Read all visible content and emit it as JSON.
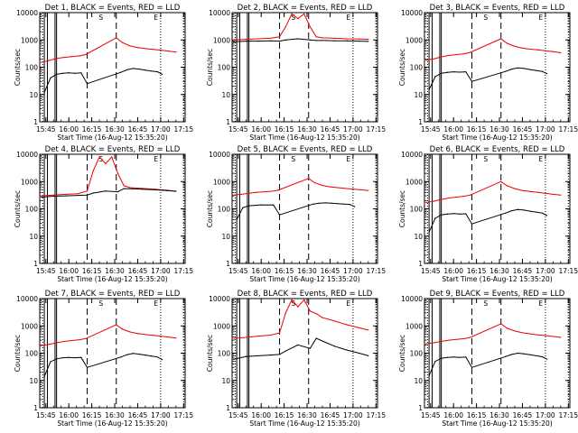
{
  "colors": {
    "events": "#000000",
    "lld": "#ee0000",
    "background": "#ffffff"
  },
  "chart_data": [
    {
      "type": "line",
      "title": "Det 1, BLACK = Events, RED = LLD",
      "xlabel": "Start Time (16-Aug-12 15:35:20)",
      "ylabel": "Counts/sec",
      "x_ticklabels": [
        "15:45",
        "16:00",
        "16:15",
        "16:30",
        "16:45",
        "17:00",
        "17:15"
      ],
      "y_ticklabels": [
        "1",
        "10",
        "100",
        "1000",
        "10000"
      ],
      "ylim": [
        1,
        10000
      ],
      "yscale": "log",
      "annotations": [
        "S",
        "E"
      ],
      "series": [
        {
          "name": "LLD",
          "x": [
            "15:42",
            "15:47",
            "15:52",
            "15:57",
            "16:02",
            "16:07",
            "16:11",
            "16:31",
            "16:35",
            "16:40",
            "16:45",
            "16:50",
            "16:55",
            "17:00",
            "17:05",
            "17:10"
          ],
          "y": [
            150,
            175,
            210,
            230,
            245,
            260,
            290,
            1200,
            800,
            600,
            520,
            480,
            450,
            420,
            390,
            360
          ]
        },
        {
          "name": "Events",
          "x": [
            "15:44",
            "15:48",
            "15:52",
            "15:56",
            "16:00",
            "16:04",
            "16:08",
            "16:12",
            "16:34",
            "16:38",
            "16:42",
            "16:46",
            "16:50",
            "16:54",
            "16:58",
            "17:01"
          ],
          "y": [
            12,
            40,
            55,
            60,
            62,
            60,
            62,
            25,
            65,
            80,
            90,
            85,
            78,
            72,
            68,
            55
          ]
        }
      ]
    },
    {
      "type": "line",
      "title": "Det 2, BLACK = Events, RED = LLD",
      "xlabel": "Start Time (16-Aug-12 15:35:20)",
      "ylabel": "Counts/sec",
      "x_ticklabels": [
        "15:45",
        "16:00",
        "16:15",
        "16:30",
        "16:45",
        "17:00",
        "17:15"
      ],
      "y_ticklabels": [
        "1",
        "10",
        "100",
        "1000",
        "10000"
      ],
      "ylim": [
        1,
        10000
      ],
      "yscale": "log",
      "annotations": [
        "S",
        "E"
      ],
      "series": [
        {
          "name": "LLD",
          "x": [
            "15:42",
            "15:50",
            "15:58",
            "16:06",
            "16:12",
            "16:16",
            "16:20",
            "16:24",
            "16:28",
            "16:32",
            "16:36",
            "16:40",
            "16:48",
            "16:56",
            "17:04",
            "17:10"
          ],
          "y": [
            1000,
            1050,
            1100,
            1150,
            1300,
            3000,
            9000,
            6000,
            9000,
            3000,
            1300,
            1200,
            1150,
            1100,
            1080,
            1050
          ]
        },
        {
          "name": "Events",
          "x": [
            "15:42",
            "15:50",
            "15:58",
            "16:06",
            "16:12",
            "16:16",
            "16:24",
            "16:32",
            "16:36",
            "16:42",
            "16:48",
            "16:56",
            "17:04",
            "17:10"
          ],
          "y": [
            850,
            900,
            900,
            920,
            900,
            1000,
            1100,
            1000,
            950,
            950,
            930,
            920,
            900,
            880
          ]
        }
      ]
    },
    {
      "type": "line",
      "title": "Det 3, BLACK = Events, RED = LLD",
      "xlabel": "Start Time (16-Aug-12 15:35:20)",
      "ylabel": "Counts/sec",
      "x_ticklabels": [
        "15:45",
        "16:00",
        "16:15",
        "16:30",
        "16:45",
        "17:00",
        "17:15"
      ],
      "y_ticklabels": [
        "1",
        "10",
        "100",
        "1000",
        "10000"
      ],
      "ylim": [
        1,
        10000
      ],
      "yscale": "log",
      "annotations": [
        "S",
        "E"
      ],
      "series": [
        {
          "name": "LLD",
          "x": [
            "15:42",
            "15:47",
            "15:52",
            "15:57",
            "16:02",
            "16:07",
            "16:11",
            "16:31",
            "16:35",
            "16:40",
            "16:45",
            "16:50",
            "16:55",
            "17:00",
            "17:05",
            "17:10"
          ],
          "y": [
            180,
            200,
            240,
            270,
            290,
            310,
            350,
            1100,
            750,
            580,
            500,
            460,
            430,
            400,
            370,
            340
          ]
        },
        {
          "name": "Events",
          "x": [
            "15:44",
            "15:48",
            "15:52",
            "15:56",
            "16:00",
            "16:04",
            "16:08",
            "16:12",
            "16:34",
            "16:38",
            "16:42",
            "16:46",
            "16:50",
            "16:54",
            "16:58",
            "17:01"
          ],
          "y": [
            15,
            45,
            60,
            65,
            68,
            66,
            68,
            30,
            70,
            85,
            95,
            90,
            82,
            76,
            70,
            58
          ]
        }
      ]
    },
    {
      "type": "line",
      "title": "Det 4, BLACK = Events, RED = LLD",
      "xlabel": "Start Time (16-Aug-12 15:35:20)",
      "ylabel": "Counts/sec",
      "x_ticklabels": [
        "15:45",
        "16:00",
        "16:15",
        "16:30",
        "16:45",
        "17:00",
        "17:15"
      ],
      "y_ticklabels": [
        "1",
        "10",
        "100",
        "1000",
        "10000"
      ],
      "ylim": [
        1,
        10000
      ],
      "yscale": "log",
      "annotations": [
        "S",
        "E"
      ],
      "series": [
        {
          "name": "LLD",
          "x": [
            "15:42",
            "15:50",
            "15:58",
            "16:06",
            "16:12",
            "16:16",
            "16:20",
            "16:24",
            "16:28",
            "16:32",
            "16:36",
            "16:40",
            "16:48",
            "16:56",
            "17:04",
            "17:10"
          ],
          "y": [
            300,
            320,
            340,
            360,
            450,
            2500,
            8000,
            4500,
            8000,
            2000,
            700,
            600,
            560,
            520,
            480,
            440
          ]
        },
        {
          "name": "Events",
          "x": [
            "15:42",
            "15:50",
            "15:58",
            "16:06",
            "16:12",
            "16:16",
            "16:24",
            "16:32",
            "16:36",
            "16:42",
            "16:48",
            "16:56",
            "17:04",
            "17:10"
          ],
          "y": [
            270,
            290,
            300,
            310,
            320,
            380,
            450,
            420,
            550,
            540,
            520,
            500,
            470,
            440
          ]
        }
      ]
    },
    {
      "type": "line",
      "title": "Det 5, BLACK = Events, RED = LLD",
      "xlabel": "Start Time (16-Aug-12 15:35:20)",
      "ylabel": "Counts/sec",
      "x_ticklabels": [
        "15:45",
        "16:00",
        "16:15",
        "16:30",
        "16:45",
        "17:00",
        "17:15"
      ],
      "y_ticklabels": [
        "1",
        "10",
        "100",
        "1000",
        "10000"
      ],
      "ylim": [
        1,
        10000
      ],
      "yscale": "log",
      "annotations": [
        "S",
        "E"
      ],
      "series": [
        {
          "name": "LLD",
          "x": [
            "15:42",
            "15:47",
            "15:52",
            "15:57",
            "16:02",
            "16:07",
            "16:11",
            "16:31",
            "16:35",
            "16:40",
            "16:45",
            "16:50",
            "16:55",
            "17:00",
            "17:05",
            "17:10"
          ],
          "y": [
            320,
            340,
            370,
            400,
            420,
            440,
            480,
            1300,
            900,
            720,
            640,
            600,
            560,
            530,
            500,
            470
          ]
        },
        {
          "name": "Events",
          "x": [
            "15:44",
            "15:48",
            "15:52",
            "15:56",
            "16:00",
            "16:04",
            "16:08",
            "16:12",
            "16:34",
            "16:38",
            "16:42",
            "16:46",
            "16:50",
            "16:54",
            "16:58",
            "17:01"
          ],
          "y": [
            40,
            110,
            130,
            135,
            140,
            138,
            140,
            60,
            150,
            160,
            165,
            160,
            155,
            150,
            145,
            120
          ]
        }
      ]
    },
    {
      "type": "line",
      "title": "Det 6, BLACK = Events, RED = LLD",
      "xlabel": "Start Time (16-Aug-12 15:35:20)",
      "ylabel": "Counts/sec",
      "x_ticklabels": [
        "15:45",
        "16:00",
        "16:15",
        "16:30",
        "16:45",
        "17:00",
        "17:15"
      ],
      "y_ticklabels": [
        "1",
        "10",
        "100",
        "1000",
        "10000"
      ],
      "ylim": [
        1,
        10000
      ],
      "yscale": "log",
      "annotations": [
        "S",
        "E"
      ],
      "series": [
        {
          "name": "LLD",
          "x": [
            "15:42",
            "15:47",
            "15:52",
            "15:57",
            "16:02",
            "16:07",
            "16:11",
            "16:31",
            "16:35",
            "16:40",
            "16:45",
            "16:50",
            "16:55",
            "17:00",
            "17:05",
            "17:10"
          ],
          "y": [
            170,
            190,
            220,
            250,
            270,
            290,
            320,
            1000,
            700,
            550,
            470,
            430,
            400,
            370,
            340,
            320
          ]
        },
        {
          "name": "Events",
          "x": [
            "15:44",
            "15:48",
            "15:52",
            "15:56",
            "16:00",
            "16:04",
            "16:08",
            "16:12",
            "16:34",
            "16:38",
            "16:42",
            "16:46",
            "16:50",
            "16:54",
            "16:58",
            "17:01"
          ],
          "y": [
            14,
            45,
            60,
            65,
            67,
            65,
            66,
            28,
            70,
            85,
            95,
            90,
            82,
            76,
            70,
            57
          ]
        }
      ]
    },
    {
      "type": "line",
      "title": "Det 7, BLACK = Events, RED = LLD",
      "xlabel": "Start Time (16-Aug-12 15:35:20)",
      "ylabel": "Counts/sec",
      "x_ticklabels": [
        "15:45",
        "16:00",
        "16:15",
        "16:30",
        "16:45",
        "17:00",
        "17:15"
      ],
      "y_ticklabels": [
        "1",
        "10",
        "100",
        "1000",
        "10000"
      ],
      "ylim": [
        1,
        10000
      ],
      "yscale": "log",
      "annotations": [
        "S",
        "E"
      ],
      "series": [
        {
          "name": "LLD",
          "x": [
            "15:42",
            "15:47",
            "15:52",
            "15:57",
            "16:02",
            "16:07",
            "16:11",
            "16:31",
            "16:35",
            "16:40",
            "16:45",
            "16:50",
            "16:55",
            "17:00",
            "17:05",
            "17:10"
          ],
          "y": [
            190,
            210,
            240,
            270,
            290,
            310,
            340,
            1100,
            760,
            600,
            520,
            480,
            450,
            420,
            390,
            360
          ]
        },
        {
          "name": "Events",
          "x": [
            "15:44",
            "15:48",
            "15:52",
            "15:56",
            "16:00",
            "16:04",
            "16:08",
            "16:12",
            "16:34",
            "16:38",
            "16:42",
            "16:46",
            "16:50",
            "16:54",
            "16:58",
            "17:01"
          ],
          "y": [
            14,
            48,
            62,
            68,
            70,
            68,
            70,
            30,
            72,
            88,
            98,
            92,
            85,
            78,
            72,
            58
          ]
        }
      ]
    },
    {
      "type": "line",
      "title": "Det 8, BLACK = Events, RED = LLD",
      "xlabel": "Start Time (16-Aug-12 15:35:20)",
      "ylabel": "Counts/sec",
      "x_ticklabels": [
        "15:45",
        "16:00",
        "16:15",
        "16:30",
        "16:45",
        "17:00",
        "17:15"
      ],
      "y_ticklabels": [
        "1",
        "10",
        "100",
        "1000",
        "10000"
      ],
      "ylim": [
        1,
        10000
      ],
      "yscale": "log",
      "annotations": [
        "S",
        "E"
      ],
      "series": [
        {
          "name": "LLD",
          "x": [
            "15:42",
            "15:50",
            "15:58",
            "16:06",
            "16:12",
            "16:16",
            "16:20",
            "16:24",
            "16:28",
            "16:32",
            "16:36",
            "16:40",
            "16:48",
            "16:56",
            "17:04",
            "17:10"
          ],
          "y": [
            350,
            380,
            420,
            460,
            550,
            3000,
            9000,
            5000,
            9000,
            3500,
            2800,
            2000,
            1500,
            1100,
            850,
            700
          ]
        },
        {
          "name": "Events",
          "x": [
            "15:42",
            "15:50",
            "15:58",
            "16:06",
            "16:12",
            "16:16",
            "16:24",
            "16:32",
            "16:36",
            "16:42",
            "16:48",
            "16:56",
            "17:04",
            "17:10"
          ],
          "y": [
            60,
            75,
            80,
            85,
            90,
            120,
            200,
            150,
            350,
            250,
            180,
            130,
            100,
            80
          ]
        }
      ]
    },
    {
      "type": "line",
      "title": "Det 9, BLACK = Events, RED = LLD",
      "xlabel": "Start Time (16-Aug-12 15:35:20)",
      "ylabel": "Counts/sec",
      "x_ticklabels": [
        "15:45",
        "16:00",
        "16:15",
        "16:30",
        "16:45",
        "17:00",
        "17:15"
      ],
      "y_ticklabels": [
        "1",
        "10",
        "100",
        "1000",
        "10000"
      ],
      "ylim": [
        1,
        10000
      ],
      "yscale": "log",
      "annotations": [
        "S",
        "E"
      ],
      "series": [
        {
          "name": "LLD",
          "x": [
            "15:42",
            "15:47",
            "15:52",
            "15:57",
            "16:02",
            "16:07",
            "16:11",
            "16:31",
            "16:35",
            "16:40",
            "16:45",
            "16:50",
            "16:55",
            "17:00",
            "17:05",
            "17:10"
          ],
          "y": [
            220,
            240,
            270,
            300,
            320,
            340,
            380,
            1200,
            820,
            650,
            560,
            510,
            470,
            440,
            410,
            380
          ]
        },
        {
          "name": "Events",
          "x": [
            "15:44",
            "15:48",
            "15:52",
            "15:56",
            "16:00",
            "16:04",
            "16:08",
            "16:12",
            "16:34",
            "16:38",
            "16:42",
            "16:46",
            "16:50",
            "16:54",
            "16:58",
            "17:01"
          ],
          "y": [
            15,
            50,
            65,
            70,
            72,
            70,
            72,
            30,
            75,
            90,
            100,
            95,
            88,
            80,
            74,
            60
          ]
        }
      ]
    }
  ]
}
